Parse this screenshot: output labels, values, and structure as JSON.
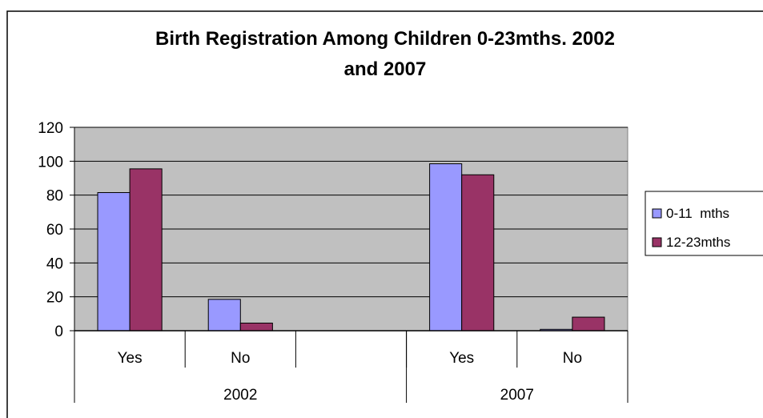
{
  "chart_data": {
    "type": "bar",
    "title_lines": [
      "Birth Registration Among Children 0-23mths. 2002",
      "and 2007"
    ],
    "groups": [
      {
        "label": "2002",
        "categories": [
          "Yes",
          "No",
          ""
        ]
      },
      {
        "label": "2007",
        "categories": [
          "Yes",
          "No"
        ]
      }
    ],
    "categories": [
      "Yes",
      "No",
      "",
      "Yes",
      "No"
    ],
    "series": [
      {
        "name": "0-11  mths",
        "color": "#9999ff",
        "values": [
          81.5,
          18.5,
          null,
          98.5,
          0.8
        ]
      },
      {
        "name": "12-23mths",
        "color": "#993366",
        "values": [
          95.5,
          4.5,
          null,
          92,
          8
        ]
      }
    ],
    "ylim": [
      0,
      120
    ],
    "yticks": [
      0,
      20,
      40,
      60,
      80,
      100,
      120
    ],
    "grid": true,
    "plot_background": "#c0c0c0",
    "legend_position": "right"
  }
}
